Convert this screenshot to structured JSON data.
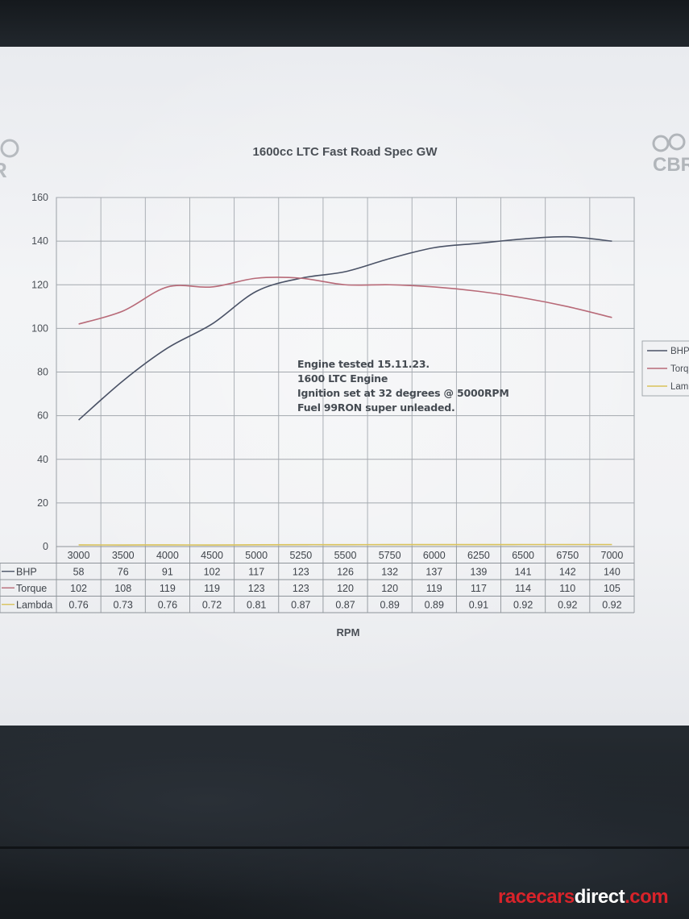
{
  "chart_data": {
    "type": "line",
    "title": "1600cc LTC Fast Road Spec GW",
    "xlabel": "RPM",
    "ylabel": "",
    "ylim": [
      0,
      160
    ],
    "yticks": [
      0,
      20,
      40,
      60,
      80,
      100,
      120,
      140,
      160
    ],
    "grid": true,
    "legend_position": "right",
    "legend_labels": [
      "BHP",
      "Torq",
      "Lam"
    ],
    "categories": [
      "3000",
      "3500",
      "4000",
      "4500",
      "5000",
      "5250",
      "5500",
      "5750",
      "6000",
      "6250",
      "6500",
      "6750",
      "7000"
    ],
    "series": [
      {
        "name": "BHP",
        "color": "#4a5266",
        "values": [
          58,
          76,
          91,
          102,
          117,
          123,
          126,
          132,
          137,
          139,
          141,
          142,
          140
        ],
        "labels": [
          "58",
          "76",
          "91",
          "102",
          "117",
          "123",
          "126",
          "132",
          "137",
          "139",
          "141",
          "142",
          "140"
        ]
      },
      {
        "name": "Torque",
        "color": "#b86a78",
        "values": [
          102,
          108,
          119,
          119,
          123,
          123,
          120,
          120,
          119,
          117,
          114,
          110,
          105
        ],
        "labels": [
          "102",
          "108",
          "119",
          "119",
          "123",
          "123",
          "120",
          "120",
          "119",
          "117",
          "114",
          "110",
          "105"
        ]
      },
      {
        "name": "Lambda",
        "color": "#d9c25a",
        "values": [
          0.76,
          0.73,
          0.76,
          0.72,
          0.81,
          0.87,
          0.87,
          0.89,
          0.89,
          0.91,
          0.92,
          0.92,
          0.92
        ],
        "labels": [
          "0.76",
          "0.73",
          "0.76",
          "0.72",
          "0.81",
          "0.87",
          "0.87",
          "0.89",
          "0.89",
          "0.91",
          "0.92",
          "0.92",
          "0.92"
        ]
      }
    ],
    "annotation": [
      "Engine tested 15.11.23.",
      "1600 LTC Engine",
      "Ignition set at 32 degrees @ 5000RPM",
      "Fuel 99RON super unleaded."
    ]
  },
  "logos": {
    "left_text": "R",
    "right_text": "CBR"
  },
  "watermark": {
    "part1": "racecars",
    "part2": "direct",
    "part3": ".com",
    "color_accent": "#d8232a"
  }
}
